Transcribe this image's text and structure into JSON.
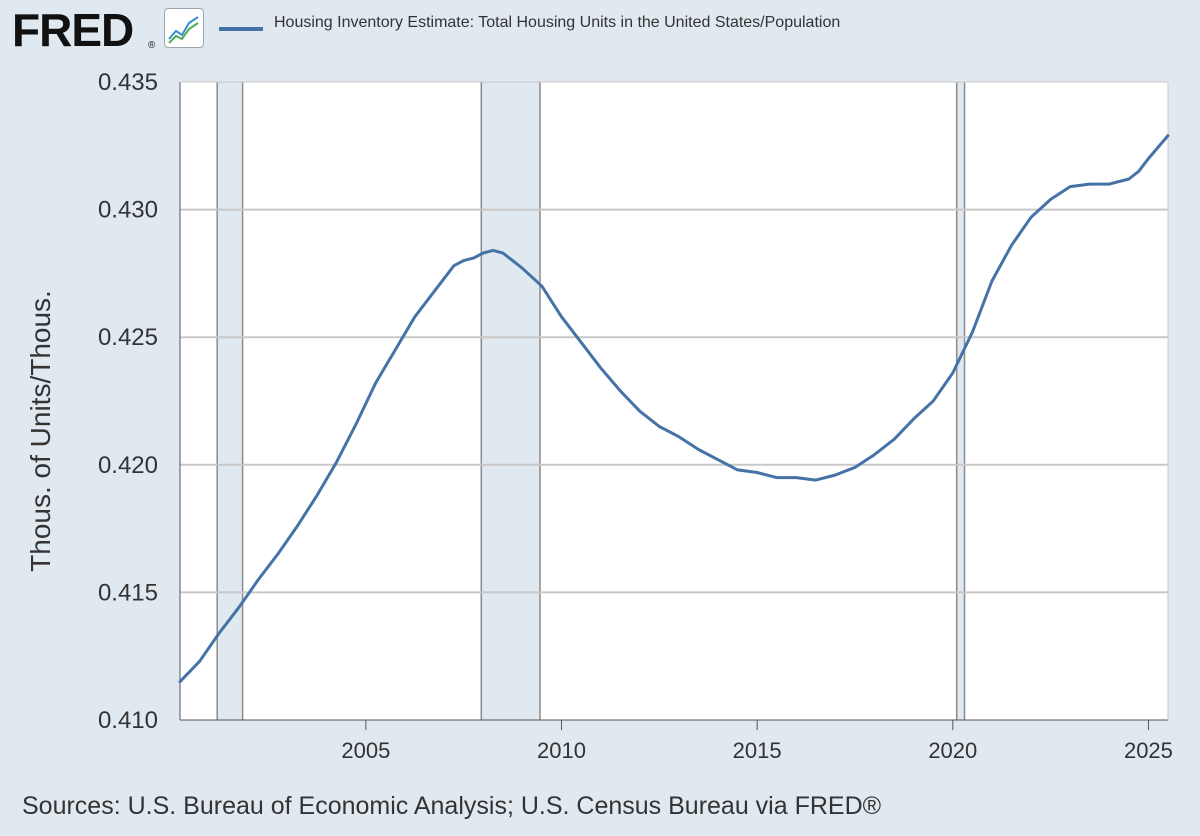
{
  "header": {
    "logo_text": "FRED",
    "logo_mark": "®",
    "graph_icon": "line-graph-icon",
    "legend_label": "Housing Inventory Estimate: Total Housing Units in the United States/Population"
  },
  "footer": {
    "source": "Sources: U.S. Bureau of Economic Analysis; U.S. Census Bureau via FRED®"
  },
  "colors": {
    "background": "#e1e9f0",
    "plot_background": "#ffffff",
    "series": "#4572a7",
    "recession_shade": "#e1e9f0",
    "grid": "#c8c8c8"
  },
  "chart_data": {
    "type": "line",
    "title": "",
    "xlabel": "",
    "ylabel": "Thous. of Units/Thous.",
    "xlim": [
      2000.25,
      2025.5
    ],
    "ylim": [
      0.41,
      0.435
    ],
    "x_ticks": [
      2005,
      2010,
      2015,
      2020,
      2025
    ],
    "x_tick_labels": [
      "2005",
      "2010",
      "2015",
      "2020",
      "2025"
    ],
    "y_ticks": [
      0.41,
      0.415,
      0.42,
      0.425,
      0.43,
      0.435
    ],
    "y_tick_labels": [
      "0.410",
      "0.415",
      "0.420",
      "0.425",
      "0.430",
      "0.435"
    ],
    "grid": true,
    "legend": "top-left",
    "recessions": [
      {
        "start": 2001.2,
        "end": 2001.85
      },
      {
        "start": 2007.95,
        "end": 2009.45
      },
      {
        "start": 2020.1,
        "end": 2020.3
      }
    ],
    "series": [
      {
        "name": "Housing Inventory Estimate: Total Housing Units in the United States/Population",
        "x": [
          2000.25,
          2000.75,
          2001.25,
          2001.75,
          2002.25,
          2002.75,
          2003.25,
          2003.75,
          2004.25,
          2004.75,
          2005.25,
          2005.75,
          2006.25,
          2006.75,
          2007.25,
          2007.5,
          2007.75,
          2008.0,
          2008.25,
          2008.5,
          2008.75,
          2009.0,
          2009.5,
          2010.0,
          2010.5,
          2011.0,
          2011.5,
          2012.0,
          2012.5,
          2013.0,
          2013.5,
          2014.0,
          2014.5,
          2015.0,
          2015.5,
          2016.0,
          2016.5,
          2017.0,
          2017.5,
          2018.0,
          2018.5,
          2019.0,
          2019.5,
          2020.0,
          2020.5,
          2021.0,
          2021.5,
          2022.0,
          2022.5,
          2023.0,
          2023.5,
          2024.0,
          2024.25,
          2024.5,
          2024.75,
          2025.0,
          2025.5
        ],
        "values": [
          0.4115,
          0.4123,
          0.4134,
          0.4144,
          0.4155,
          0.4165,
          0.4176,
          0.4188,
          0.4201,
          0.4216,
          0.4232,
          0.4245,
          0.4258,
          0.4268,
          0.4278,
          0.428,
          0.4281,
          0.4283,
          0.4284,
          0.4283,
          0.428,
          0.4277,
          0.427,
          0.4258,
          0.4248,
          0.4238,
          0.4229,
          0.4221,
          0.4215,
          0.4211,
          0.4206,
          0.4202,
          0.4198,
          0.4197,
          0.4195,
          0.4195,
          0.4194,
          0.4196,
          0.4199,
          0.4204,
          0.421,
          0.4218,
          0.4225,
          0.4236,
          0.4252,
          0.4272,
          0.4286,
          0.4297,
          0.4304,
          0.4309,
          0.431,
          0.431,
          0.4311,
          0.4312,
          0.4315,
          0.432,
          0.4329
        ]
      }
    ]
  }
}
